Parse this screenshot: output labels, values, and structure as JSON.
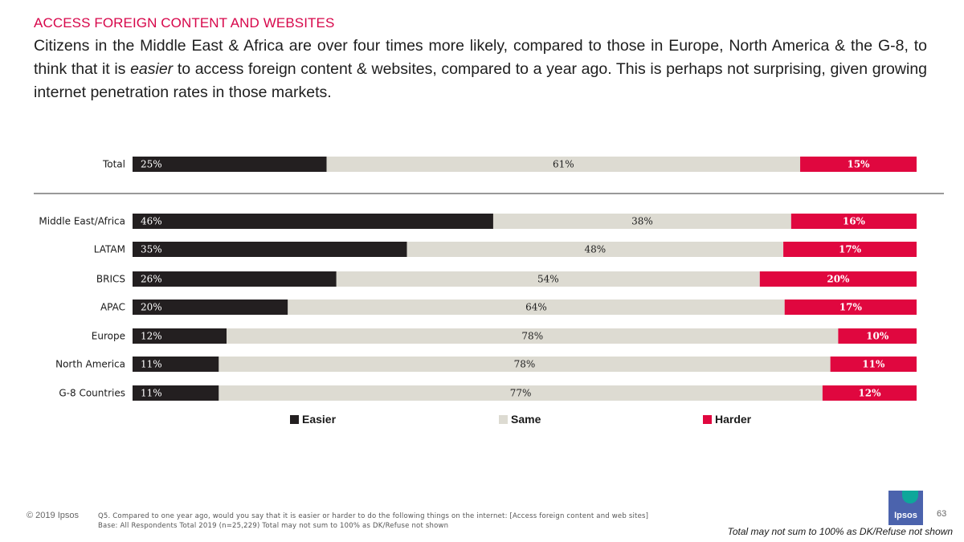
{
  "header": {
    "kicker": "ACCESS FOREIGN CONTENT AND WEBSITES",
    "headline_part1": "Citizens in the Middle East & Africa are over four times more likely, compared to those in Europe, North America & the G-8, to think that it is ",
    "headline_emphasis": "easier",
    "headline_part2": " to access foreign content & websites, compared to a year ago. This is perhaps not surprising, given growing internet penetration rates in those markets."
  },
  "colors": {
    "easier": "#231f20",
    "same": "#dddbd2",
    "harder": "#e0073f",
    "kicker": "#d7064a",
    "separator": "#333333"
  },
  "chart_data": {
    "type": "bar",
    "orientation": "horizontal",
    "stacked": true,
    "categories": [
      "Total",
      "Middle East/Africa",
      "LATAM",
      "BRICS",
      "APAC",
      "Europe",
      "North America",
      "G-8 Countries"
    ],
    "series": [
      {
        "name": "Easier",
        "values": [
          25,
          46,
          35,
          26,
          20,
          12,
          11,
          11
        ],
        "labels": [
          "25%",
          "46%",
          "35%",
          "26%",
          "20%",
          "12%",
          "11%",
          "11%"
        ]
      },
      {
        "name": "Same",
        "values": [
          61,
          38,
          48,
          54,
          64,
          78,
          78,
          77
        ],
        "labels": [
          "61%",
          "38%",
          "48%",
          "54%",
          "64%",
          "78%",
          "78%",
          "77%"
        ]
      },
      {
        "name": "Harder",
        "values": [
          15,
          16,
          17,
          20,
          17,
          10,
          11,
          12
        ],
        "labels": [
          "15%",
          "16%",
          "17%",
          "20%",
          "17%",
          "10%",
          "11%",
          "12%"
        ]
      }
    ],
    "separator_after_category": "Total",
    "legend_position": "bottom",
    "grid": false
  },
  "footer": {
    "copyright": "© 2019 Ipsos",
    "question": "Q5. Compared to one year ago, would you say that it is easier or harder to do the following things on the internet: [Access foreign content and web sites]",
    "base": "Base: All Respondents Total 2019 (n=25,229) Total may not sum to 100% as DK/Refuse not shown",
    "logo_text": "Ipsos",
    "page_number": "63",
    "total_note": "Total may not sum to 100% as DK/Refuse not shown"
  }
}
